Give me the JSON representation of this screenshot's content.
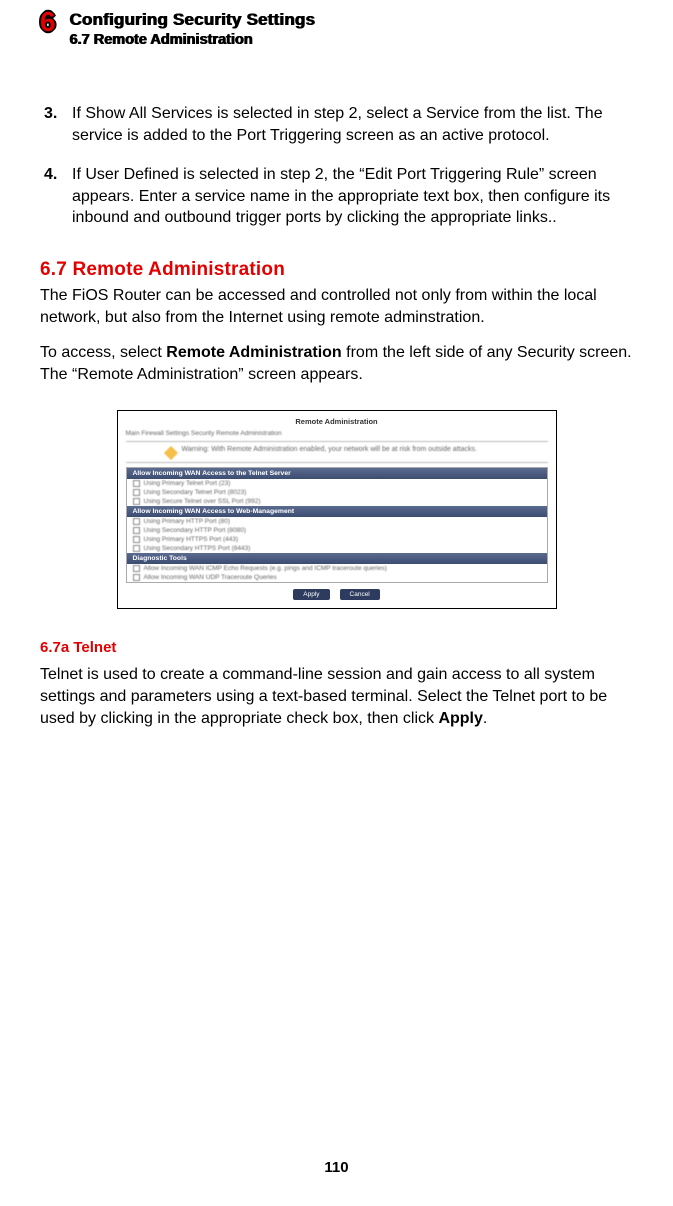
{
  "header": {
    "chapter_number": "6",
    "title": "Configuring Security Settings",
    "subtitle": "6.7  Remote Administration"
  },
  "list": {
    "item3": {
      "num": "3.",
      "text": "If Show All Services is selected in step 2, select a Service from the list. The service is added to the Port Triggering screen as an active protocol."
    },
    "item4": {
      "num": "4.",
      "text": "If  User Defined is selected in step 2, the “Edit Port Triggering Rule” screen appears. Enter a service name in the appropriate text box, then configure its inbound and outbound trigger ports by clicking the appropriate links.."
    }
  },
  "section": {
    "heading": "6.7  Remote Administration",
    "p1": "The FiOS Router can be accessed and controlled not only from within the local network, but also from the Internet using remote adminstration.",
    "p2a": "To access, select ",
    "p2bold": "Remote Administration",
    "p2b": " from the left side of any Security screen. The “Remote Administration” screen appears."
  },
  "screenshot": {
    "title": "Remote Administration",
    "breadcrumb": "Main  Firewall Settings  Security  Remote Administration",
    "warning": "Warning:    With Remote Administration enabled, your network will be at risk from outside attacks.",
    "groups": [
      {
        "head": "Allow Incoming WAN Access to the Telnet Server",
        "rows": [
          "Using Primary Telnet Port (23)",
          "Using Secondary Telnet Port (8023)",
          "Using Secure Telnet over SSL Port (992)"
        ]
      },
      {
        "head": "Allow Incoming WAN Access to Web-Management",
        "rows": [
          "Using Primary HTTP Port (80)",
          "Using Secondary HTTP Port (8080)",
          "Using Primary HTTPS Port (443)",
          "Using Secondary HTTPS Port (8443)"
        ]
      },
      {
        "head": "Diagnostic Tools",
        "rows": [
          "Allow Incoming WAN ICMP Echo Requests (e.g. pings and ICMP traceroute queries)",
          "Allow Incoming WAN UDP Traceroute Queries"
        ]
      }
    ],
    "buttons": {
      "apply": "Apply",
      "cancel": "Cancel"
    }
  },
  "subsection": {
    "heading": "6.7a  Telnet",
    "p_a": "Telnet is used to create a command-line session and gain access to all system settings and parameters using a text-based terminal. Select the Telnet port to be used by clicking in the appropriate check box, then click ",
    "p_bold": "Apply",
    "p_b": "."
  },
  "page_number": "110",
  "colors": {
    "accent": "#e20000"
  }
}
